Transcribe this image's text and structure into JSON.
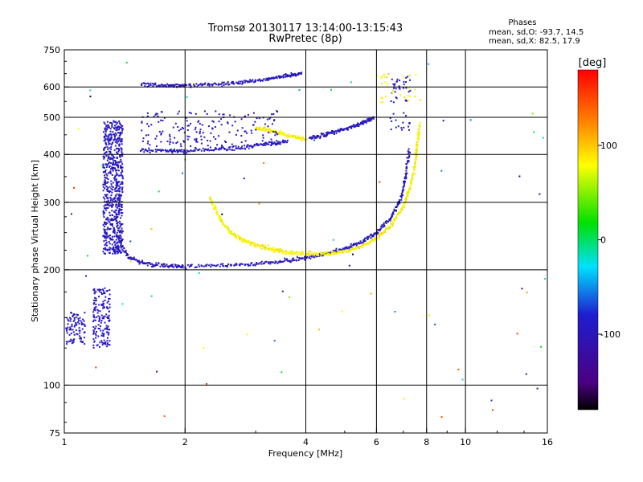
{
  "chart_data": {
    "type": "scatter",
    "title": "Tromsø 20130117 13:14:00-13:15:43",
    "subtitle": "RwPretec (8p)",
    "xlabel": "Frequency [MHz]",
    "ylabel": "Stationary phase Virtual Height [km]",
    "xscale": "log",
    "yscale": "log",
    "xlim": [
      1,
      16
    ],
    "ylim": [
      75,
      750
    ],
    "xticks": [
      1,
      2,
      4,
      6,
      8,
      10,
      16
    ],
    "yticks": [
      75,
      100,
      200,
      300,
      400,
      500,
      600,
      750
    ],
    "x_grid_lines": [
      2,
      4,
      6,
      8,
      10
    ],
    "y_grid_lines": [
      100,
      200,
      300,
      400,
      500,
      600
    ],
    "grid": true,
    "legend": {
      "title": "Phases",
      "lines": [
        "mean, sd,O: -93.7, 14.5",
        "mean, sd,X:  82.5, 17.9"
      ],
      "placement": "top-right"
    },
    "colorbar": {
      "label": "[deg]",
      "range": [
        -180,
        180
      ],
      "ticks": [
        100,
        0,
        -100
      ],
      "colormap": "rainbow: black at -180, purple, blue, cyan, green, yellow, orange, red at +180"
    },
    "series": [
      {
        "name": "O",
        "phase_mean": -93.7,
        "phase_sd": 14.5
      },
      {
        "name": "X",
        "phase_mean": 82.5,
        "phase_sd": 17.9
      }
    ],
    "point_groups": [
      {
        "kind": "cloud",
        "mode": "O",
        "x_range": [
          1.25,
          1.4
        ],
        "y_range": [
          220,
          490
        ],
        "n": 700
      },
      {
        "kind": "cloud",
        "mode": "O",
        "x_range": [
          1.01,
          1.13
        ],
        "y_range": [
          128,
          155
        ],
        "n": 90
      },
      {
        "kind": "cloud",
        "mode": "O",
        "x_range": [
          1.18,
          1.3
        ],
        "y_range": [
          125,
          180
        ],
        "n": 160
      },
      {
        "kind": "curve",
        "mode": "O",
        "x": [
          1.35,
          1.45,
          1.6,
          1.8,
          2.0,
          2.5,
          3.0,
          3.5,
          4.0,
          4.5,
          5.0,
          5.5,
          6.0,
          6.5,
          6.9,
          7.1,
          7.25
        ],
        "y": [
          245,
          215,
          207,
          205,
          204,
          205,
          207,
          210,
          215,
          220,
          227,
          236,
          250,
          272,
          305,
          350,
          410
        ]
      },
      {
        "kind": "curve",
        "mode": "X",
        "x": [
          2.3,
          2.45,
          2.6,
          2.8,
          3.0,
          3.3,
          3.6,
          4.0,
          4.5,
          5.0,
          5.5,
          6.0,
          6.5,
          7.0,
          7.3,
          7.5,
          7.6,
          7.7
        ],
        "y": [
          310,
          270,
          250,
          238,
          232,
          226,
          222,
          220,
          220,
          223,
          230,
          242,
          260,
          292,
          330,
          380,
          430,
          480
        ]
      },
      {
        "kind": "curve",
        "mode": "O",
        "x": [
          1.55,
          1.8,
          2.0,
          2.4,
          2.8,
          3.2,
          3.6
        ],
        "y": [
          411,
          408,
          409,
          412,
          418,
          425,
          433
        ]
      },
      {
        "kind": "curve",
        "mode": "O",
        "x": [
          1.55,
          1.8,
          2.0,
          2.4,
          2.8,
          3.2,
          3.6,
          3.9
        ],
        "y": [
          610,
          605,
          605,
          610,
          618,
          630,
          642,
          650
        ]
      },
      {
        "kind": "curve",
        "mode": "O",
        "x": [
          4.1,
          4.5,
          5.0,
          5.5,
          5.9
        ],
        "y": [
          442,
          452,
          465,
          480,
          500
        ]
      },
      {
        "kind": "curve",
        "mode": "X",
        "x": [
          3.0,
          3.3,
          3.6,
          4.0
        ],
        "y": [
          470,
          460,
          448,
          438
        ]
      },
      {
        "kind": "cloud",
        "mode": "O",
        "x_range": [
          1.55,
          3.4
        ],
        "y_range": [
          420,
          520
        ],
        "n": 180
      },
      {
        "kind": "cloud",
        "mode": "O",
        "x_range": [
          6.5,
          7.3
        ],
        "y_range": [
          450,
          640
        ],
        "n": 50
      },
      {
        "kind": "cloud",
        "mode": "X",
        "x_range": [
          6.0,
          7.8
        ],
        "y_range": [
          540,
          650
        ],
        "n": 30
      },
      {
        "kind": "sparse",
        "mode": "mixed",
        "x_range": [
          1.0,
          16.0
        ],
        "y_range": [
          78,
          720
        ],
        "n": 70
      }
    ]
  }
}
